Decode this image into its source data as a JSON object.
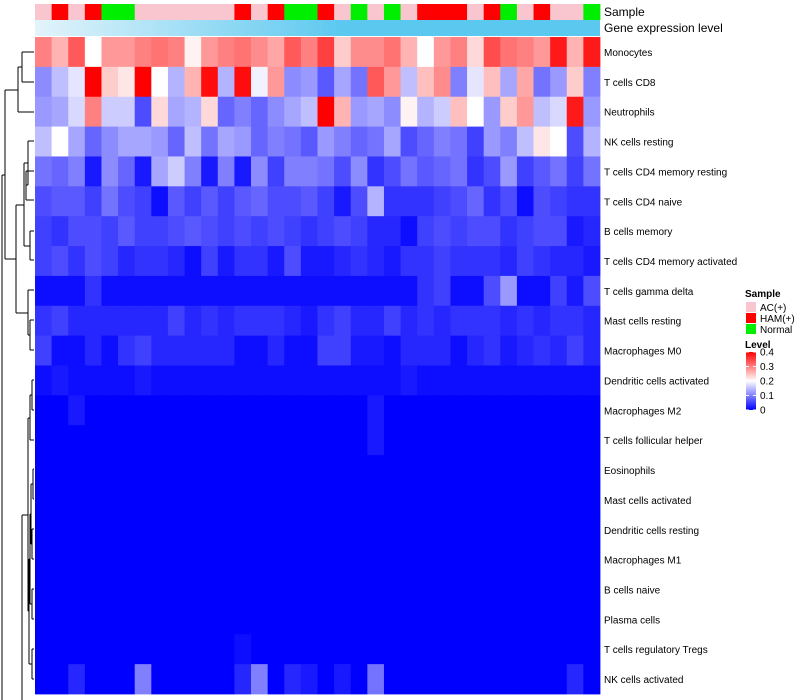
{
  "chart_data": {
    "type": "heatmap",
    "annotations": {
      "sample_label": "Sample",
      "gene_label": "Gene expression level"
    },
    "sample_groups": [
      "AC",
      "HAM",
      "AC",
      "HAM",
      "Normal",
      "Normal",
      "AC",
      "AC",
      "AC",
      "AC",
      "AC",
      "AC",
      "HAM",
      "AC",
      "HAM",
      "Normal",
      "Normal",
      "HAM",
      "AC",
      "Normal",
      "AC",
      "Normal",
      "AC",
      "HAM",
      "HAM",
      "HAM",
      "AC",
      "HAM",
      "Normal",
      "AC",
      "HAM",
      "AC",
      "AC",
      "Normal"
    ],
    "rows": [
      "Monocytes",
      "T cells CD8",
      "Neutrophils",
      "NK cells resting",
      "T cells CD4 memory resting",
      "T cells CD4 naive",
      "B cells memory",
      "T cells CD4 memory activated",
      "T cells gamma delta",
      "Mast cells resting",
      "Macrophages M0",
      "Dendritic cells activated",
      "Macrophages M2",
      "T cells follicular helper",
      "Eosinophils",
      "Mast cells activated",
      "Dendritic cells resting",
      "Macrophages M1",
      "B cells naive",
      "Plasma cells",
      "T cells regulatory  Tregs",
      "NK cells activated"
    ],
    "values": [
      [
        0.3,
        0.26,
        0.33,
        0.2,
        0.28,
        0.28,
        0.3,
        0.31,
        0.3,
        0.21,
        0.28,
        0.3,
        0.31,
        0.29,
        0.27,
        0.33,
        0.3,
        0.35,
        0.24,
        0.29,
        0.29,
        0.31,
        0.26,
        0.2,
        0.28,
        0.3,
        0.23,
        0.34,
        0.31,
        0.3,
        0.28,
        0.38,
        0.26,
        0.38
      ],
      [
        0.11,
        0.15,
        0.18,
        0.4,
        0.24,
        0.22,
        0.4,
        0.2,
        0.14,
        0.26,
        0.39,
        0.14,
        0.39,
        0.19,
        0.28,
        0.11,
        0.12,
        0.07,
        0.13,
        0.09,
        0.33,
        0.28,
        0.15,
        0.25,
        0.29,
        0.1,
        0.18,
        0.25,
        0.13,
        0.27,
        0.09,
        0.12,
        0.24,
        0.1
      ],
      [
        0.12,
        0.13,
        0.17,
        0.3,
        0.16,
        0.16,
        0.06,
        0.23,
        0.13,
        0.14,
        0.23,
        0.08,
        0.1,
        0.08,
        0.11,
        0.13,
        0.15,
        0.4,
        0.26,
        0.12,
        0.13,
        0.11,
        0.21,
        0.14,
        0.16,
        0.25,
        0.2,
        0.12,
        0.24,
        0.28,
        0.15,
        0.17,
        0.38,
        0.12
      ],
      [
        0.15,
        0.2,
        0.13,
        0.08,
        0.11,
        0.13,
        0.13,
        0.12,
        0.08,
        0.15,
        0.09,
        0.13,
        0.12,
        0.08,
        0.1,
        0.09,
        0.07,
        0.12,
        0.1,
        0.08,
        0.09,
        0.13,
        0.06,
        0.08,
        0.1,
        0.09,
        0.05,
        0.12,
        0.1,
        0.15,
        0.22,
        0.2,
        0.06,
        0.14
      ],
      [
        0.09,
        0.08,
        0.1,
        0.02,
        0.11,
        0.08,
        0.02,
        0.13,
        0.16,
        0.1,
        0.02,
        0.1,
        0.02,
        0.11,
        0.05,
        0.1,
        0.1,
        0.09,
        0.06,
        0.11,
        0.04,
        0.06,
        0.09,
        0.07,
        0.08,
        0.09,
        0.04,
        0.06,
        0.12,
        0.05,
        0.07,
        0.09,
        0.05,
        0.09
      ],
      [
        0.06,
        0.07,
        0.07,
        0.05,
        0.09,
        0.06,
        0.05,
        0.01,
        0.07,
        0.05,
        0.07,
        0.05,
        0.07,
        0.08,
        0.06,
        0.06,
        0.07,
        0.05,
        0.02,
        0.06,
        0.14,
        0.04,
        0.04,
        0.04,
        0.05,
        0.06,
        0.08,
        0.04,
        0.06,
        0.01,
        0.06,
        0.05,
        0.04,
        0.04
      ],
      [
        0.05,
        0.04,
        0.06,
        0.06,
        0.05,
        0.07,
        0.05,
        0.05,
        0.06,
        0.07,
        0.06,
        0.05,
        0.06,
        0.05,
        0.06,
        0.05,
        0.04,
        0.05,
        0.06,
        0.05,
        0.03,
        0.03,
        0.01,
        0.05,
        0.06,
        0.05,
        0.06,
        0.06,
        0.04,
        0.05,
        0.06,
        0.06,
        0.02,
        0.03
      ],
      [
        0.05,
        0.06,
        0.04,
        0.06,
        0.05,
        0.03,
        0.04,
        0.04,
        0.03,
        0.01,
        0.05,
        0.02,
        0.04,
        0.04,
        0.02,
        0.06,
        0.02,
        0.02,
        0.03,
        0.04,
        0.03,
        0.02,
        0.04,
        0.04,
        0.05,
        0.04,
        0.04,
        0.04,
        0.03,
        0.05,
        0.04,
        0.03,
        0.03,
        0.02
      ],
      [
        0.01,
        0.01,
        0.01,
        0.04,
        0.01,
        0.01,
        0.01,
        0.01,
        0.01,
        0.01,
        0.01,
        0.01,
        0.01,
        0.01,
        0.01,
        0.01,
        0.01,
        0.01,
        0.01,
        0.01,
        0.01,
        0.01,
        0.01,
        0.04,
        0.05,
        0.01,
        0.01,
        0.06,
        0.12,
        0.01,
        0.01,
        0.05,
        0.02,
        0.06
      ],
      [
        0.04,
        0.05,
        0.03,
        0.03,
        0.03,
        0.03,
        0.03,
        0.03,
        0.05,
        0.03,
        0.04,
        0.03,
        0.04,
        0.04,
        0.04,
        0.03,
        0.02,
        0.04,
        0.05,
        0.03,
        0.03,
        0.05,
        0.03,
        0.04,
        0.03,
        0.04,
        0.04,
        0.04,
        0.03,
        0.04,
        0.03,
        0.04,
        0.04,
        0.03
      ],
      [
        0.05,
        0.01,
        0.01,
        0.03,
        0.01,
        0.04,
        0.05,
        0.03,
        0.03,
        0.03,
        0.03,
        0.03,
        0.01,
        0.01,
        0.03,
        0.01,
        0.01,
        0.05,
        0.05,
        0.02,
        0.02,
        0.01,
        0.03,
        0.03,
        0.03,
        0.01,
        0.03,
        0.04,
        0.02,
        0.03,
        0.04,
        0.03,
        0.05,
        0.03
      ],
      [
        0.01,
        0.02,
        0.01,
        0.01,
        0.01,
        0.01,
        0.02,
        0.01,
        0.01,
        0.01,
        0.01,
        0.01,
        0.01,
        0.01,
        0.01,
        0.01,
        0.01,
        0.01,
        0.01,
        0.01,
        0.01,
        0.01,
        0.02,
        0.01,
        0.01,
        0.01,
        0.01,
        0.01,
        0.01,
        0.01,
        0.01,
        0.01,
        0.01,
        0.01
      ],
      [
        0.0,
        0.0,
        0.02,
        0.0,
        0.0,
        0.0,
        0.0,
        0.0,
        0.0,
        0.0,
        0.0,
        0.0,
        0.0,
        0.0,
        0.0,
        0.0,
        0.0,
        0.0,
        0.0,
        0.0,
        0.02,
        0.0,
        0.0,
        0.0,
        0.0,
        0.0,
        0.0,
        0.0,
        0.0,
        0.0,
        0.0,
        0.0,
        0.0,
        0.0
      ],
      [
        0.0,
        0.0,
        0.0,
        0.0,
        0.0,
        0.0,
        0.0,
        0.0,
        0.0,
        0.0,
        0.0,
        0.0,
        0.0,
        0.0,
        0.0,
        0.0,
        0.0,
        0.0,
        0.0,
        0.0,
        0.02,
        0.0,
        0.0,
        0.0,
        0.0,
        0.0,
        0.0,
        0.0,
        0.0,
        0.0,
        0.0,
        0.0,
        0.0,
        0.0
      ],
      [
        0.0,
        0.0,
        0.0,
        0.0,
        0.0,
        0.0,
        0.0,
        0.0,
        0.0,
        0.0,
        0.0,
        0.0,
        0.0,
        0.0,
        0.0,
        0.0,
        0.0,
        0.0,
        0.0,
        0.0,
        0.0,
        0.0,
        0.0,
        0.0,
        0.0,
        0.0,
        0.0,
        0.0,
        0.0,
        0.0,
        0.0,
        0.0,
        0.0,
        0.0
      ],
      [
        0.0,
        0.0,
        0.0,
        0.0,
        0.0,
        0.0,
        0.0,
        0.0,
        0.0,
        0.0,
        0.0,
        0.0,
        0.0,
        0.0,
        0.0,
        0.0,
        0.0,
        0.0,
        0.0,
        0.0,
        0.0,
        0.0,
        0.0,
        0.0,
        0.0,
        0.0,
        0.0,
        0.0,
        0.0,
        0.0,
        0.0,
        0.0,
        0.0,
        0.0
      ],
      [
        0.0,
        0.0,
        0.0,
        0.0,
        0.0,
        0.0,
        0.0,
        0.0,
        0.0,
        0.0,
        0.0,
        0.0,
        0.0,
        0.0,
        0.0,
        0.0,
        0.0,
        0.0,
        0.0,
        0.0,
        0.0,
        0.0,
        0.0,
        0.0,
        0.0,
        0.0,
        0.0,
        0.0,
        0.0,
        0.0,
        0.0,
        0.0,
        0.0,
        0.0
      ],
      [
        0.0,
        0.0,
        0.0,
        0.0,
        0.0,
        0.0,
        0.0,
        0.0,
        0.0,
        0.0,
        0.0,
        0.0,
        0.0,
        0.0,
        0.0,
        0.0,
        0.0,
        0.0,
        0.0,
        0.0,
        0.0,
        0.0,
        0.0,
        0.0,
        0.0,
        0.0,
        0.0,
        0.0,
        0.0,
        0.0,
        0.0,
        0.0,
        0.0,
        0.0
      ],
      [
        0.0,
        0.0,
        0.0,
        0.0,
        0.0,
        0.0,
        0.0,
        0.0,
        0.0,
        0.0,
        0.0,
        0.0,
        0.0,
        0.0,
        0.0,
        0.0,
        0.0,
        0.0,
        0.0,
        0.0,
        0.0,
        0.0,
        0.0,
        0.0,
        0.0,
        0.0,
        0.0,
        0.0,
        0.0,
        0.0,
        0.0,
        0.0,
        0.0,
        0.0
      ],
      [
        0.0,
        0.0,
        0.0,
        0.0,
        0.0,
        0.0,
        0.0,
        0.0,
        0.0,
        0.0,
        0.0,
        0.0,
        0.0,
        0.0,
        0.0,
        0.0,
        0.0,
        0.0,
        0.0,
        0.0,
        0.0,
        0.0,
        0.0,
        0.0,
        0.0,
        0.0,
        0.0,
        0.0,
        0.0,
        0.0,
        0.0,
        0.0,
        0.0,
        0.0
      ],
      [
        0.0,
        0.0,
        0.0,
        0.0,
        0.0,
        0.0,
        0.0,
        0.0,
        0.0,
        0.0,
        0.0,
        0.0,
        0.01,
        0.0,
        0.0,
        0.0,
        0.0,
        0.0,
        0.0,
        0.0,
        0.0,
        0.0,
        0.0,
        0.0,
        0.0,
        0.0,
        0.0,
        0.0,
        0.0,
        0.0,
        0.0,
        0.0,
        0.0,
        0.0
      ],
      [
        0.0,
        0.0,
        0.03,
        0.0,
        0.0,
        0.0,
        0.1,
        0.0,
        0.0,
        0.0,
        0.0,
        0.0,
        0.03,
        0.1,
        0.0,
        0.03,
        0.02,
        0.0,
        0.02,
        0.0,
        0.09,
        0.0,
        0.0,
        0.0,
        0.0,
        0.0,
        0.0,
        0.0,
        0.0,
        0.0,
        0.0,
        0.0,
        0.03,
        0.0
      ]
    ],
    "legend": {
      "sample": {
        "title": "Sample",
        "items": [
          {
            "label": "AC(+)",
            "color": "#F9C6D0"
          },
          {
            "label": "HAM(+)",
            "color": "#FF0000"
          },
          {
            "label": "Normal",
            "color": "#00EE00"
          }
        ]
      },
      "level": {
        "title": "Level",
        "ticks": [
          0.4,
          0.3,
          0.2,
          0.1,
          0
        ],
        "tick_labels": [
          "0.4",
          "0.3",
          "0.2",
          "0.1",
          "0"
        ],
        "range": [
          0,
          0.4
        ],
        "colors": [
          "#0000FF",
          "#FFFFFF",
          "#FF0000"
        ]
      }
    },
    "gene_bar_color": "#5BC8EF",
    "gene_bar_light_color": "#E3F4FB"
  }
}
